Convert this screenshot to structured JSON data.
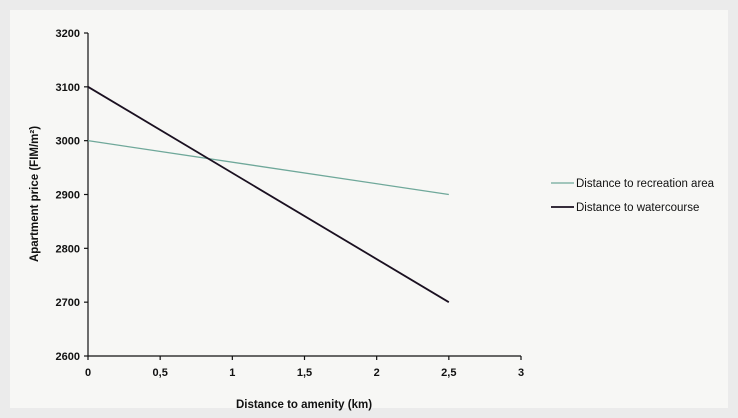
{
  "chart_data": {
    "type": "line",
    "title": "",
    "xlabel": "Distance to amenity (km)",
    "ylabel": "Apartment price (FIM/m²)",
    "xlim": [
      0,
      3
    ],
    "ylim": [
      2600,
      3200
    ],
    "x_ticks": [
      "0",
      "0,5",
      "1",
      "1,5",
      "2",
      "2,5",
      "3"
    ],
    "x_tick_values": [
      0,
      0.5,
      1,
      1.5,
      2,
      2.5,
      3
    ],
    "y_ticks": [
      "2600",
      "2700",
      "2800",
      "2900",
      "3000",
      "3100",
      "3200"
    ],
    "y_tick_values": [
      2600,
      2700,
      2800,
      2900,
      3000,
      3100,
      3200
    ],
    "grid": false,
    "legend_position": "right",
    "series": [
      {
        "name": "Distance to recreation area",
        "color": "#6fa89a",
        "x": [
          0,
          2.5
        ],
        "y": [
          3000,
          2900
        ]
      },
      {
        "name": "Distance to watercourse",
        "color": "#1a1020",
        "x": [
          0,
          2.5
        ],
        "y": [
          3100,
          2700
        ]
      }
    ]
  }
}
